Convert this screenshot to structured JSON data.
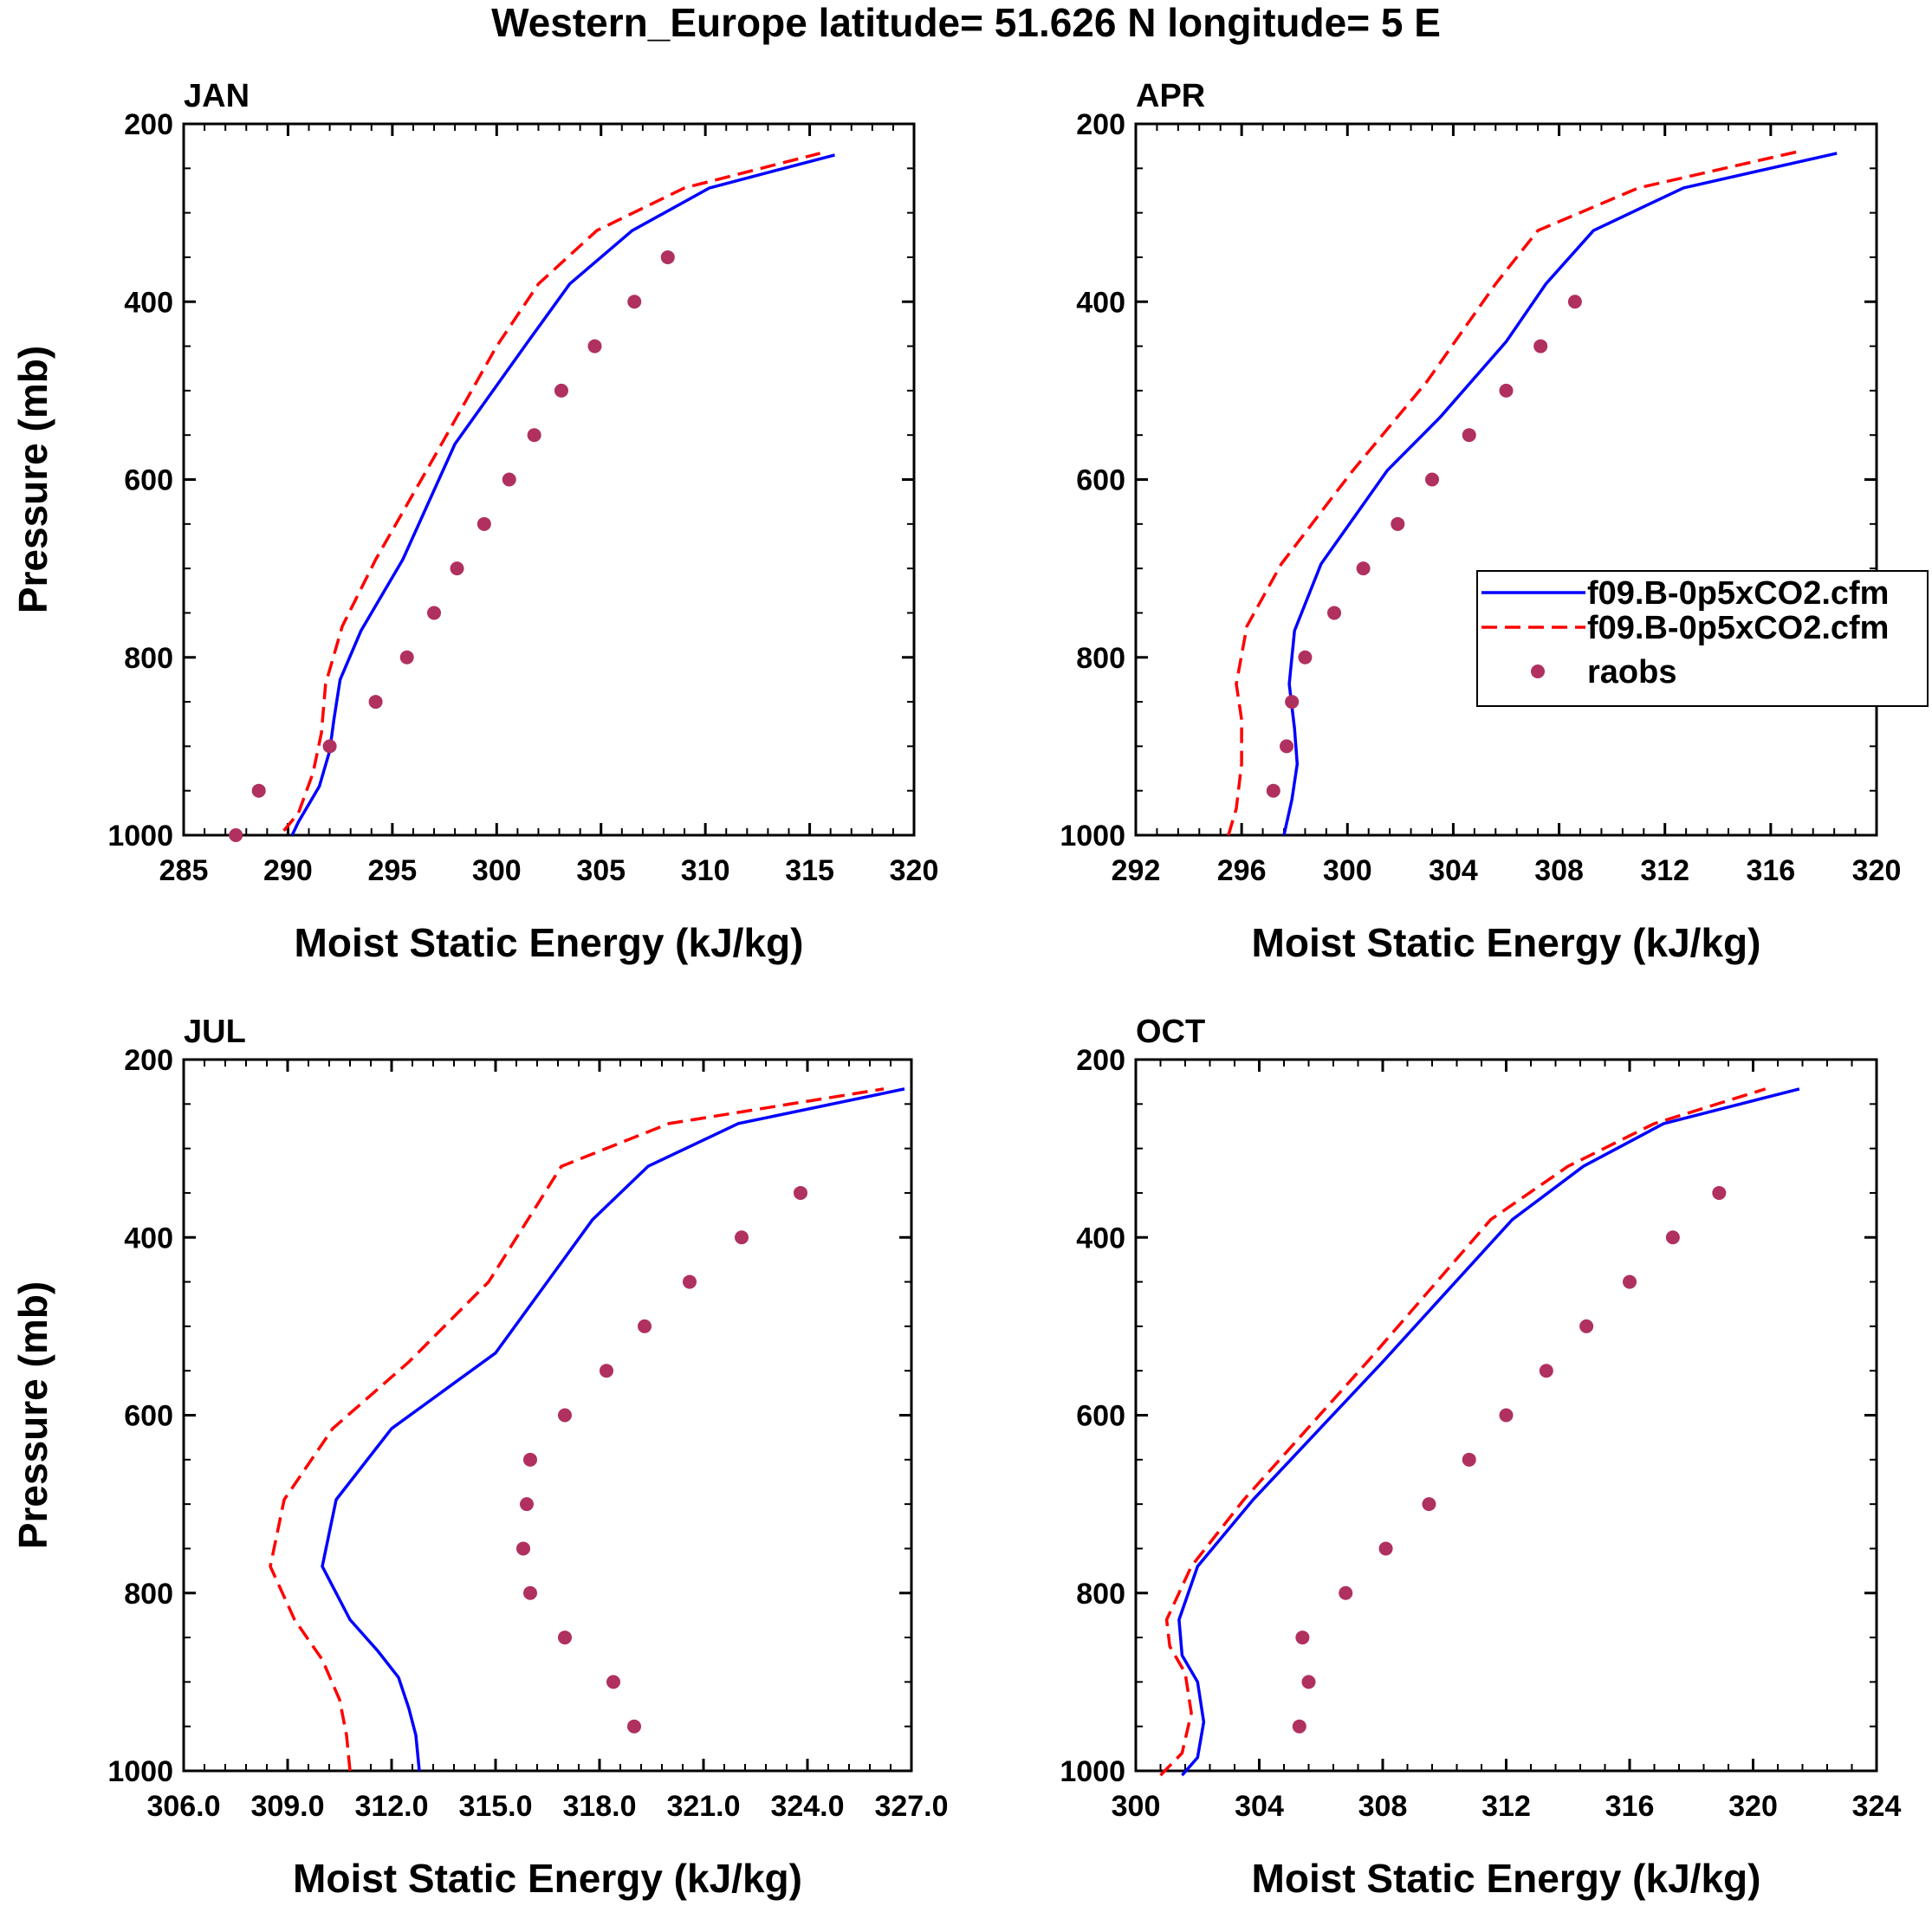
{
  "title": "Western_Europe  latitude= 51.626 N longitude= 5 E",
  "chart_data": [
    {
      "type": "line",
      "title": "JAN",
      "xlabel": "Moist Static Energy (kJ/kg)",
      "ylabel": "Pressure (mb)",
      "xlim": [
        285,
        320
      ],
      "ylim": [
        200,
        1000
      ],
      "xticks": [
        "285",
        "290",
        "295",
        "300",
        "305",
        "310",
        "315",
        "320"
      ],
      "yticks": [
        "200",
        "400",
        "600",
        "800",
        "1000"
      ],
      "legend": false,
      "series": [
        {
          "name": "f09.B-0p5xCO2.cfm",
          "style": "solid",
          "color": "#0000ff",
          "x": [
            290.2,
            290.5,
            291.5,
            292.0,
            292.2,
            292.5,
            293.5,
            295.5,
            298.0,
            301.5,
            303.5,
            306.5,
            310.2,
            316.2
          ],
          "y": [
            1000,
            985,
            945,
            905,
            870,
            825,
            770,
            690,
            560,
            445,
            380,
            320,
            272,
            235
          ]
        },
        {
          "name": "f09.B-0p5xCO2.cfm",
          "style": "dashed",
          "color": "#ff0000",
          "x": [
            289.8,
            290.5,
            291.2,
            291.6,
            291.8,
            292.6,
            294.2,
            297.0,
            300.0,
            302.0,
            304.8,
            309.0,
            315.5
          ],
          "y": [
            995,
            975,
            930,
            885,
            830,
            765,
            690,
            575,
            450,
            380,
            320,
            272,
            233
          ]
        },
        {
          "name": "raobs",
          "style": "points",
          "color": "#b03060",
          "x": [
            287.5,
            288.6,
            292.0,
            294.2,
            295.7,
            297.0,
            298.1,
            299.4,
            300.6,
            301.8,
            303.1,
            304.7,
            306.6,
            308.2
          ],
          "y": [
            1000,
            950,
            900,
            850,
            800,
            750,
            700,
            650,
            600,
            550,
            500,
            450,
            400,
            350
          ]
        }
      ]
    },
    {
      "type": "line",
      "title": "APR",
      "xlabel": "Moist Static Energy (kJ/kg)",
      "ylabel": "",
      "xlim": [
        292,
        320
      ],
      "ylim": [
        200,
        1000
      ],
      "xticks": [
        "292",
        "296",
        "300",
        "304",
        "308",
        "312",
        "316",
        "320"
      ],
      "yticks": [
        "200",
        "400",
        "600",
        "800",
        "1000"
      ],
      "legend": true,
      "legend_position": "right",
      "series": [
        {
          "name": "f09.B-0p5xCO2.cfm",
          "style": "solid",
          "color": "#0000ff",
          "x": [
            297.6,
            297.9,
            298.1,
            298.0,
            297.8,
            298.0,
            299.0,
            301.5,
            303.5,
            306.0,
            307.5,
            309.3,
            312.7,
            318.5
          ],
          "y": [
            1000,
            960,
            920,
            880,
            830,
            770,
            695,
            590,
            530,
            445,
            380,
            320,
            272,
            233
          ]
        },
        {
          "name": "f09.B-0p5xCO2.cfm",
          "style": "dashed",
          "color": "#ff0000",
          "x": [
            295.5,
            295.8,
            296.0,
            296.0,
            295.8,
            296.2,
            297.5,
            300.2,
            303.0,
            305.6,
            307.2,
            311.0,
            317.2
          ],
          "y": [
            1000,
            970,
            920,
            870,
            830,
            765,
            695,
            590,
            490,
            380,
            320,
            272,
            230
          ]
        },
        {
          "name": "raobs",
          "style": "points",
          "color": "#b03060",
          "x": [
            297.2,
            297.7,
            297.9,
            298.4,
            299.5,
            300.6,
            301.9,
            303.2,
            304.6,
            306.0,
            307.3,
            308.6
          ],
          "y": [
            950,
            900,
            850,
            800,
            750,
            700,
            650,
            600,
            550,
            500,
            450,
            400
          ]
        }
      ]
    },
    {
      "type": "line",
      "title": "JUL",
      "xlabel": "Moist Static Energy (kJ/kg)",
      "ylabel": "Pressure (mb)",
      "xlim": [
        306,
        327
      ],
      "ylim": [
        200,
        1000
      ],
      "xticks": [
        "306.0",
        "309.0",
        "312.0",
        "315.0",
        "318.0",
        "321.0",
        "324.0",
        "327.0"
      ],
      "yticks": [
        "200",
        "400",
        "600",
        "800",
        "1000"
      ],
      "legend": false,
      "series": [
        {
          "name": "f09.B-0p5xCO2.cfm",
          "style": "solid",
          "color": "#0000ff",
          "x": [
            312.8,
            312.7,
            312.5,
            312.2,
            311.6,
            310.8,
            310.0,
            310.4,
            312.0,
            315.0,
            317.8,
            319.4,
            322.0,
            326.8
          ],
          "y": [
            1000,
            960,
            930,
            895,
            865,
            830,
            770,
            695,
            615,
            530,
            380,
            320,
            272,
            233
          ]
        },
        {
          "name": "f09.B-0p5xCO2.cfm",
          "style": "dashed",
          "color": "#ff0000",
          "x": [
            310.8,
            310.7,
            310.5,
            310.0,
            309.2,
            308.5,
            308.9,
            310.3,
            312.5,
            314.8,
            316.9,
            320.0,
            326.2
          ],
          "y": [
            1000,
            960,
            920,
            875,
            830,
            770,
            695,
            615,
            540,
            450,
            320,
            272,
            233
          ]
        },
        {
          "name": "raobs",
          "style": "points",
          "color": "#b03060",
          "x": [
            319.0,
            318.4,
            317.0,
            316.0,
            315.8,
            315.9,
            316.0,
            317.0,
            318.2,
            319.3,
            320.6,
            322.1,
            323.8
          ],
          "y": [
            950,
            900,
            850,
            800,
            750,
            700,
            650,
            600,
            550,
            500,
            450,
            400,
            350
          ]
        }
      ]
    },
    {
      "type": "line",
      "title": "OCT",
      "xlabel": "Moist Static Energy (kJ/kg)",
      "ylabel": "",
      "xlim": [
        300,
        324
      ],
      "ylim": [
        200,
        1000
      ],
      "xticks": [
        "300",
        "304",
        "308",
        "312",
        "316",
        "320",
        "324"
      ],
      "yticks": [
        "200",
        "400",
        "600",
        "800",
        "1000"
      ],
      "legend": false,
      "series": [
        {
          "name": "f09.B-0p5xCO2.cfm",
          "style": "solid",
          "color": "#0000ff",
          "x": [
            301.5,
            302.0,
            302.2,
            302.0,
            301.5,
            301.4,
            302.0,
            303.8,
            308.0,
            312.2,
            314.5,
            317.1,
            321.5
          ],
          "y": [
            1005,
            985,
            945,
            900,
            870,
            830,
            770,
            695,
            540,
            380,
            320,
            272,
            233
          ]
        },
        {
          "name": "f09.B-0p5xCO2.cfm",
          "style": "dashed",
          "color": "#ff0000",
          "x": [
            300.8,
            301.5,
            301.8,
            301.6,
            301.1,
            301.0,
            301.8,
            303.5,
            307.5,
            311.5,
            314.0,
            316.8,
            320.4
          ],
          "y": [
            1005,
            980,
            935,
            890,
            860,
            830,
            770,
            695,
            540,
            380,
            320,
            272,
            233
          ]
        },
        {
          "name": "raobs",
          "style": "points",
          "color": "#b03060",
          "x": [
            305.3,
            305.6,
            305.4,
            306.8,
            308.1,
            309.5,
            310.8,
            312.0,
            313.3,
            314.6,
            316.0,
            317.4,
            318.9
          ],
          "y": [
            950,
            900,
            850,
            800,
            750,
            700,
            650,
            600,
            550,
            500,
            450,
            400,
            350
          ]
        }
      ]
    }
  ],
  "legend": {
    "entries": [
      "f09.B-0p5xCO2.cfm",
      "f09.B-0p5xCO2.cfm",
      "raobs"
    ]
  }
}
